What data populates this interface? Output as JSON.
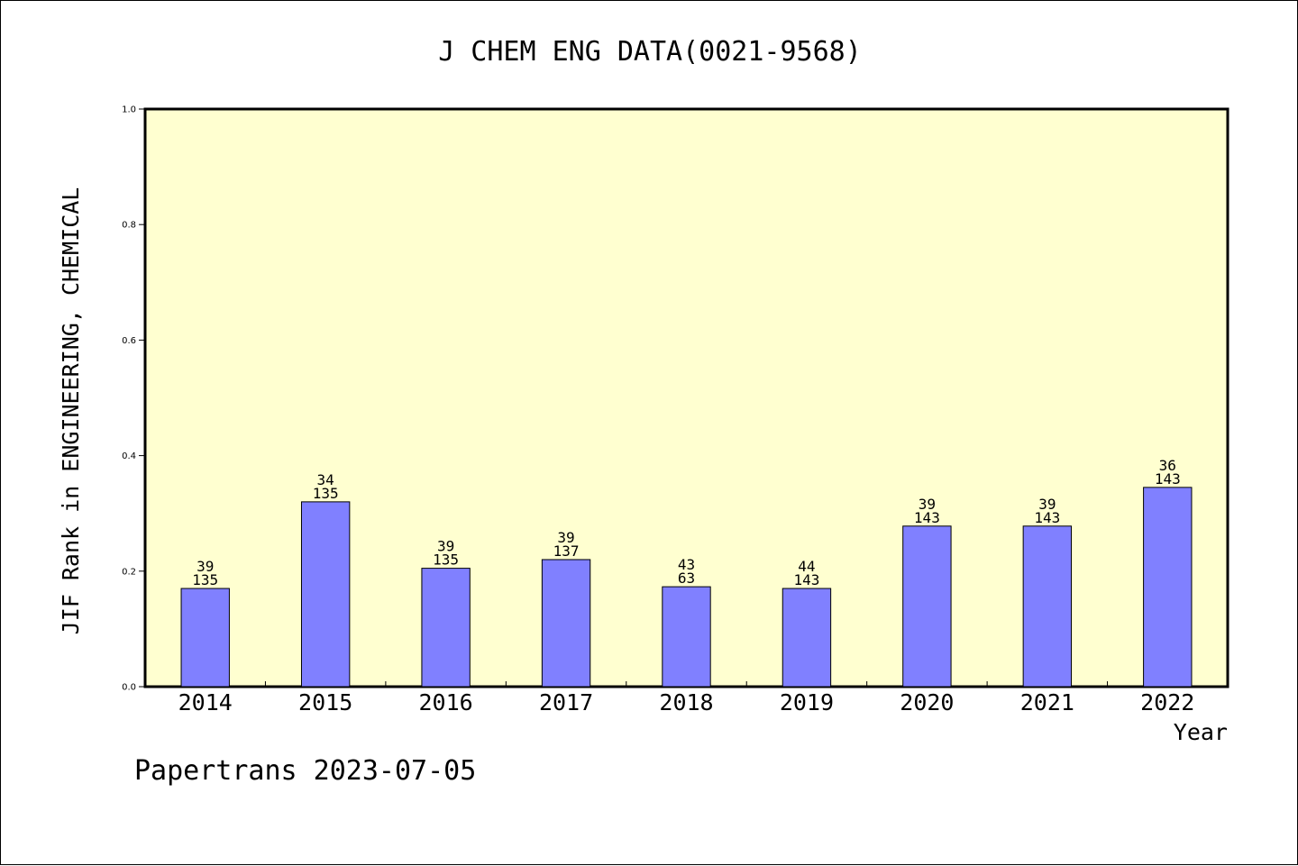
{
  "chart_data": {
    "type": "bar",
    "title": "J CHEM ENG DATA(0021-9568)",
    "xlabel": "Year",
    "ylabel": "JIF Rank in ENGINEERING, CHEMICAL",
    "ylim": [
      0,
      1.0
    ],
    "yticks": [
      "0.0",
      "0.2",
      "0.4",
      "0.6",
      "0.8",
      "1.0"
    ],
    "categories": [
      "2014",
      "2015",
      "2016",
      "2017",
      "2018",
      "2019",
      "2020",
      "2021",
      "2022"
    ],
    "values": [
      0.17,
      0.32,
      0.205,
      0.22,
      0.173,
      0.17,
      0.278,
      0.278,
      0.345
    ],
    "rank_labels": [
      "39",
      "34",
      "39",
      "39",
      "43",
      "44",
      "39",
      "39",
      "36"
    ],
    "total_labels": [
      "135",
      "135",
      "135",
      "137",
      "63",
      "143",
      "143",
      "143",
      "143"
    ],
    "grid": false,
    "background_color": "#ffffd0",
    "bar_color": "#8080ff"
  },
  "footer": {
    "text": "Papertrans 2023-07-05"
  }
}
